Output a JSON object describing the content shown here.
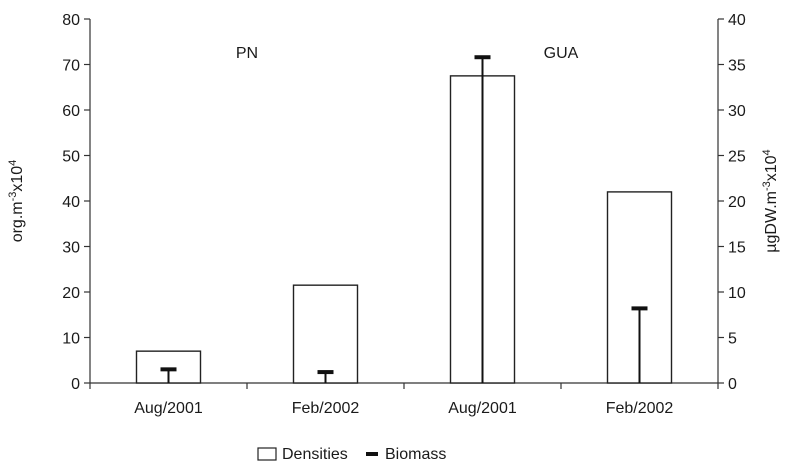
{
  "chart_data": {
    "type": "bar",
    "categories": [
      "Aug/2001",
      "Feb/2002",
      "Aug/2001",
      "Feb/2002"
    ],
    "groups": [
      {
        "label": "PN",
        "categories": [
          0,
          1
        ]
      },
      {
        "label": "GUA",
        "categories": [
          2,
          3
        ]
      }
    ],
    "series": [
      {
        "name": "Densities",
        "axis": "left",
        "mark": "bar",
        "values": [
          7,
          21.5,
          67.5,
          42
        ]
      },
      {
        "name": "Biomass",
        "axis": "right",
        "mark": "line-with-cap",
        "values": [
          1.5,
          1.2,
          35.8,
          8.2
        ]
      }
    ],
    "ylabel_left": {
      "main": "org.m",
      "sup1": "-3",
      "mid": "x10",
      "sup2": "4"
    },
    "ylabel_right": {
      "main": "µgDW.m",
      "sup1": "-3",
      "mid": "x10",
      "sup2": "4"
    },
    "ylim_left": [
      0,
      80
    ],
    "ylim_right": [
      0,
      40
    ],
    "yticks_left": [
      "0",
      "10",
      "20",
      "30",
      "40",
      "50",
      "60",
      "70",
      "80"
    ],
    "yticks_right": [
      "0",
      "5",
      "10",
      "15",
      "20",
      "25",
      "30",
      "35",
      "40"
    ],
    "grid": false,
    "legend": {
      "position": "bottom-center"
    }
  }
}
